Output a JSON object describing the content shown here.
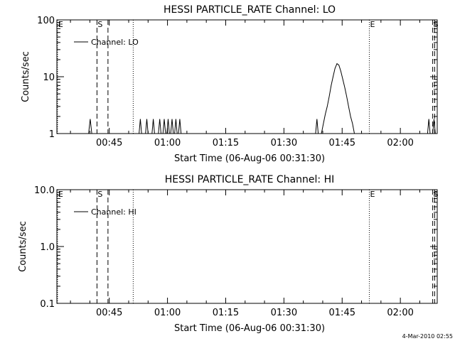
{
  "footer": {
    "date": "4-Mar-2010 02:55"
  },
  "chart_data": [
    {
      "type": "line",
      "title": "HESSI PARTICLE_RATE Channel: LO",
      "xlabel": "Start Time (06-Aug-06 00:31:30)",
      "ylabel": "Counts/sec",
      "yscale": "log",
      "ylim": [
        1,
        100
      ],
      "yticks": [
        1,
        10,
        100
      ],
      "ytick_labels": [
        "1",
        "10",
        "100"
      ],
      "xlim": [
        "00:31:30",
        "02:09:30"
      ],
      "xticks": [
        "00:45",
        "01:00",
        "01:15",
        "01:30",
        "01:45",
        "02:00"
      ],
      "legend": {
        "label": "Channel: LO",
        "placement": "top-left"
      },
      "markers": [
        {
          "label": "E",
          "time": "00:31:40",
          "style": "dotted"
        },
        {
          "label": "S",
          "time": "00:41:50",
          "style": "dashed"
        },
        {
          "label": "",
          "time": "00:44:40",
          "style": "dashed"
        },
        {
          "label": "",
          "time": "00:51:10",
          "style": "dotted"
        },
        {
          "label": "E",
          "time": "01:52:00",
          "style": "dotted"
        },
        {
          "label": "S",
          "time": "02:08:20",
          "style": "dashed"
        },
        {
          "label": "",
          "time": "02:08:50",
          "style": "dashed"
        }
      ],
      "series": [
        {
          "name": "Channel: LO",
          "points": [
            [
              "00:39:40",
              1
            ],
            [
              "00:40:05",
              1.8
            ],
            [
              "00:40:30",
              1
            ],
            [
              "00:52:40",
              1
            ],
            [
              "00:53:00",
              1.8
            ],
            [
              "00:53:20",
              1
            ],
            [
              "00:54:20",
              1
            ],
            [
              "00:54:40",
              1.8
            ],
            [
              "00:55:00",
              1
            ],
            [
              "00:56:00",
              1
            ],
            [
              "00:56:20",
              1.8
            ],
            [
              "00:56:40",
              1
            ],
            [
              "00:57:40",
              1
            ],
            [
              "00:58:00",
              1.8
            ],
            [
              "00:58:20",
              1
            ],
            [
              "00:58:50",
              1
            ],
            [
              "00:59:10",
              1.8
            ],
            [
              "00:59:30",
              1
            ],
            [
              "00:59:50",
              1
            ],
            [
              "01:00:10",
              1.8
            ],
            [
              "01:00:30",
              1
            ],
            [
              "01:00:50",
              1
            ],
            [
              "01:01:10",
              1.8
            ],
            [
              "01:01:30",
              1
            ],
            [
              "01:01:50",
              1
            ],
            [
              "01:02:10",
              1.8
            ],
            [
              "01:02:30",
              1
            ],
            [
              "01:02:50",
              1
            ],
            [
              "01:03:10",
              1.8
            ],
            [
              "01:03:30",
              1
            ],
            [
              "01:38:10",
              1
            ],
            [
              "01:38:30",
              1.8
            ],
            [
              "01:38:50",
              1
            ],
            [
              "01:39:40",
              1
            ],
            [
              "01:40:10",
              1.5
            ],
            [
              "01:40:40",
              2.2
            ],
            [
              "01:41:10",
              3.0
            ],
            [
              "01:41:40",
              4.5
            ],
            [
              "01:42:10",
              7.0
            ],
            [
              "01:42:40",
              10.0
            ],
            [
              "01:43:10",
              14.0
            ],
            [
              "01:43:40",
              17.0
            ],
            [
              "01:44:10",
              16.0
            ],
            [
              "01:44:40",
              12.5
            ],
            [
              "01:45:10",
              9.0
            ],
            [
              "01:45:40",
              6.5
            ],
            [
              "01:46:10",
              4.5
            ],
            [
              "01:46:40",
              3.0
            ],
            [
              "01:47:10",
              2.0
            ],
            [
              "01:47:40",
              1.5
            ],
            [
              "01:48:10",
              1
            ],
            [
              "02:07:00",
              1
            ],
            [
              "02:07:20",
              1.8
            ],
            [
              "02:07:40",
              1
            ],
            [
              "02:08:20",
              1
            ],
            [
              "02:08:40",
              1.8
            ],
            [
              "02:09:00",
              1
            ]
          ]
        }
      ]
    },
    {
      "type": "line",
      "title": "HESSI PARTICLE_RATE Channel: HI",
      "xlabel": "Start Time (06-Aug-06 00:31:30)",
      "ylabel": "Counts/sec",
      "yscale": "log",
      "ylim": [
        0.1,
        10.0
      ],
      "yticks": [
        0.1,
        1.0,
        10.0
      ],
      "ytick_labels": [
        "0.1",
        "1.0",
        "10.0"
      ],
      "xlim": [
        "00:31:30",
        "02:09:30"
      ],
      "xticks": [
        "00:45",
        "01:00",
        "01:15",
        "01:30",
        "01:45",
        "02:00"
      ],
      "legend": {
        "label": "Channel: HI",
        "placement": "top-left"
      },
      "markers": [
        {
          "label": "E",
          "time": "00:31:40",
          "style": "dotted"
        },
        {
          "label": "S",
          "time": "00:41:50",
          "style": "dashed"
        },
        {
          "label": "",
          "time": "00:44:40",
          "style": "dashed"
        },
        {
          "label": "",
          "time": "00:51:10",
          "style": "dotted"
        },
        {
          "label": "E",
          "time": "01:52:00",
          "style": "dotted"
        },
        {
          "label": "S",
          "time": "02:08:20",
          "style": "dashed"
        },
        {
          "label": "",
          "time": "02:08:50",
          "style": "dashed"
        }
      ],
      "series": [
        {
          "name": "Channel: HI",
          "points": []
        }
      ]
    }
  ]
}
